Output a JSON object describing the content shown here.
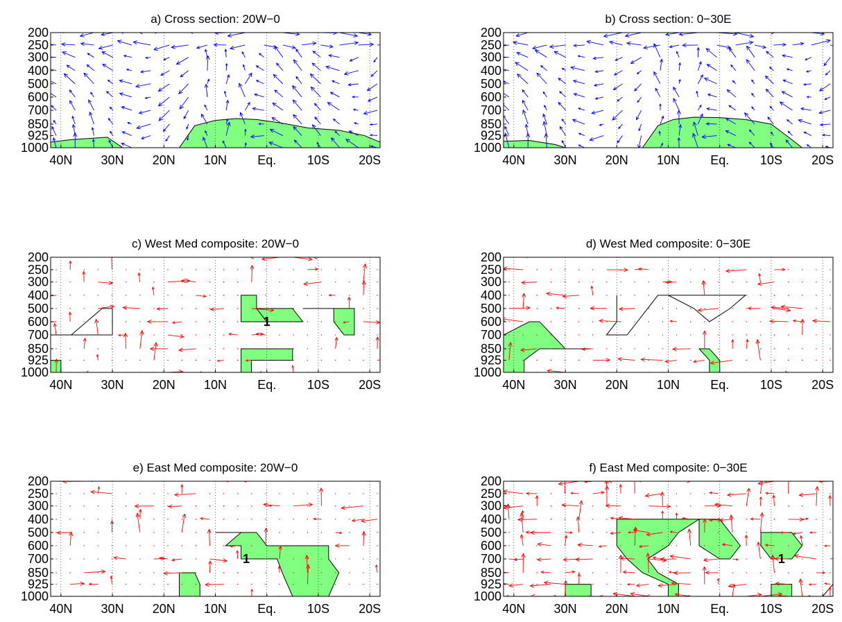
{
  "figure": {
    "background": "#ffffff"
  },
  "colors": {
    "obs_vector": "#0000ff",
    "composite_vector": "#ff0000",
    "shading_fill": "#80ff80",
    "outline": "#000000",
    "grid": "#000000"
  },
  "chart_data": [
    {
      "id": "a",
      "type": "vector-cross-section",
      "title": "a) Cross section: 20W−0",
      "vector_style": "obs",
      "x_ticks": [
        "40N",
        "30N",
        "20N",
        "10N",
        "Eq.",
        "10S",
        "20S"
      ],
      "x_tick_values": [
        40,
        30,
        20,
        10,
        0,
        -10,
        -20
      ],
      "xlim": [
        42,
        -22
      ],
      "y_ticks": [
        "200",
        "250",
        "300",
        "400",
        "500",
        "600",
        "700",
        "850",
        "925",
        "1000"
      ],
      "shaded_regions": [
        [
          [
            42,
            1000
          ],
          [
            42,
            965
          ],
          [
            38,
            950
          ],
          [
            31,
            935
          ],
          [
            28,
            1000
          ]
        ],
        [
          [
            17,
            1000
          ],
          [
            14,
            860
          ],
          [
            10,
            810
          ],
          [
            6,
            790
          ],
          [
            2,
            800
          ],
          [
            -3,
            840
          ],
          [
            -8,
            875
          ],
          [
            -14,
            890
          ],
          [
            -19,
            925
          ],
          [
            -22,
            965
          ],
          [
            -22,
            1000
          ]
        ]
      ],
      "outlines": [],
      "numeric_labels": []
    },
    {
      "id": "b",
      "type": "vector-cross-section",
      "title": "b) Cross section: 0−30E",
      "vector_style": "obs",
      "x_ticks": [
        "40N",
        "30N",
        "20N",
        "10N",
        "Eq.",
        "10S",
        "20S"
      ],
      "x_tick_values": [
        40,
        30,
        20,
        10,
        0,
        -10,
        -20
      ],
      "xlim": [
        42,
        -22
      ],
      "y_ticks": [
        "200",
        "250",
        "300",
        "400",
        "500",
        "600",
        "700",
        "850",
        "925",
        "1000"
      ],
      "shaded_regions": [
        [
          [
            42,
            1000
          ],
          [
            42,
            960
          ],
          [
            37,
            955
          ],
          [
            32,
            980
          ],
          [
            30,
            1000
          ]
        ],
        [
          [
            15,
            1000
          ],
          [
            12,
            860
          ],
          [
            9,
            800
          ],
          [
            5,
            775
          ],
          [
            0,
            780
          ],
          [
            -5,
            800
          ],
          [
            -10,
            850
          ],
          [
            -14,
            950
          ],
          [
            -16,
            1000
          ]
        ]
      ],
      "outlines": [],
      "numeric_labels": []
    },
    {
      "id": "c",
      "type": "vector-cross-section",
      "title": "c) West Med composite: 20W−0",
      "vector_style": "composite",
      "x_ticks": [
        "40N",
        "30N",
        "20N",
        "10N",
        "Eq.",
        "10S",
        "20S"
      ],
      "x_tick_values": [
        40,
        30,
        20,
        10,
        0,
        -10,
        -20
      ],
      "xlim": [
        42,
        -22
      ],
      "y_ticks": [
        "200",
        "250",
        "300",
        "400",
        "500",
        "600",
        "700",
        "850",
        "925",
        "1000"
      ],
      "shaded_regions": [
        [
          [
            5,
            400
          ],
          [
            2,
            400
          ],
          [
            2,
            500
          ],
          [
            0,
            600
          ],
          [
            5,
            600
          ],
          [
            5,
            400
          ]
        ],
        [
          [
            2,
            500
          ],
          [
            -5,
            500
          ],
          [
            -7,
            600
          ],
          [
            0,
            600
          ],
          [
            2,
            500
          ]
        ],
        [
          [
            -13,
            500
          ],
          [
            -17,
            500
          ],
          [
            -17,
            700
          ],
          [
            -15,
            700
          ],
          [
            -13,
            600
          ],
          [
            -13,
            500
          ]
        ],
        [
          [
            3,
            925
          ],
          [
            3,
            1000
          ],
          [
            5,
            1000
          ],
          [
            5,
            850
          ],
          [
            -5,
            850
          ],
          [
            -5,
            925
          ],
          [
            3,
            925
          ]
        ],
        [
          [
            42,
            925
          ],
          [
            42,
            1000
          ],
          [
            40,
            1000
          ],
          [
            40,
            925
          ]
        ]
      ],
      "outlines": [
        [
          [
            42,
            700
          ],
          [
            30,
            700
          ],
          [
            30,
            500
          ],
          [
            32,
            500
          ],
          [
            38,
            700
          ]
        ],
        [
          [
            -7,
            500
          ],
          [
            -13,
            500
          ]
        ]
      ],
      "numeric_labels": [
        {
          "x": 0,
          "y": 600,
          "text": "1"
        }
      ]
    },
    {
      "id": "d",
      "type": "vector-cross-section",
      "title": "d) West Med composite: 0−30E",
      "vector_style": "composite",
      "x_ticks": [
        "40N",
        "30N",
        "20N",
        "10N",
        "Eq.",
        "10S",
        "20S"
      ],
      "x_tick_values": [
        40,
        30,
        20,
        10,
        0,
        -10,
        -20
      ],
      "xlim": [
        42,
        -22
      ],
      "y_ticks": [
        "200",
        "250",
        "300",
        "400",
        "500",
        "600",
        "700",
        "850",
        "925",
        "1000"
      ],
      "shaded_regions": [
        [
          [
            42,
            700
          ],
          [
            37,
            600
          ],
          [
            35,
            600
          ],
          [
            30,
            850
          ],
          [
            35,
            850
          ],
          [
            38,
            925
          ],
          [
            38,
            1000
          ],
          [
            42,
            1000
          ]
        ],
        [
          [
            0,
            925
          ],
          [
            0,
            1000
          ],
          [
            2,
            1000
          ],
          [
            2,
            925
          ],
          [
            4,
            850
          ],
          [
            2,
            850
          ],
          [
            0,
            925
          ]
        ]
      ],
      "outlines": [
        [
          [
            20,
            400
          ],
          [
            20,
            600
          ],
          [
            22,
            700
          ],
          [
            18,
            700
          ],
          [
            12,
            400
          ],
          [
            10,
            400
          ],
          [
            5,
            500
          ],
          [
            2,
            600
          ],
          [
            -2,
            500
          ],
          [
            -5,
            400
          ],
          [
            12,
            400
          ]
        ],
        [
          [
            30,
            850
          ],
          [
            25,
            850
          ]
        ]
      ],
      "numeric_labels": []
    },
    {
      "id": "e",
      "type": "vector-cross-section",
      "title": "e) East Med composite: 20W−0",
      "vector_style": "composite",
      "x_ticks": [
        "40N",
        "30N",
        "20N",
        "10N",
        "Eq.",
        "10S",
        "20S"
      ],
      "x_tick_values": [
        40,
        30,
        20,
        10,
        0,
        -10,
        -20
      ],
      "xlim": [
        42,
        -22
      ],
      "y_ticks": [
        "200",
        "250",
        "300",
        "400",
        "500",
        "600",
        "700",
        "850",
        "925",
        "1000"
      ],
      "shaded_regions": [
        [
          [
            5,
            500
          ],
          [
            2,
            500
          ],
          [
            0,
            600
          ],
          [
            -12,
            600
          ],
          [
            -12,
            700
          ],
          [
            -14,
            850
          ],
          [
            -12,
            1000
          ],
          [
            -5,
            1000
          ],
          [
            -3,
            850
          ],
          [
            -2,
            700
          ],
          [
            5,
            700
          ],
          [
            5,
            600
          ],
          [
            8,
            600
          ],
          [
            5,
            500
          ]
        ],
        [
          [
            17,
            850
          ],
          [
            17,
            1000
          ],
          [
            13,
            1000
          ],
          [
            13,
            925
          ],
          [
            14,
            850
          ]
        ]
      ],
      "outlines": [
        [
          [
            10,
            500
          ],
          [
            5,
            500
          ]
        ]
      ],
      "numeric_labels": [
        {
          "x": 4,
          "y": 700,
          "text": "1"
        }
      ]
    },
    {
      "id": "f",
      "type": "vector-cross-section",
      "title": "f) East Med composite: 0−30E",
      "vector_style": "composite",
      "x_ticks": [
        "40N",
        "30N",
        "20N",
        "10N",
        "Eq.",
        "10S",
        "20S"
      ],
      "x_tick_values": [
        40,
        30,
        20,
        10,
        0,
        -10,
        -20
      ],
      "xlim": [
        42,
        -22
      ],
      "y_ticks": [
        "200",
        "250",
        "300",
        "400",
        "500",
        "600",
        "700",
        "850",
        "925",
        "1000"
      ],
      "shaded_regions": [
        [
          [
            20,
            400
          ],
          [
            20,
            600
          ],
          [
            18,
            700
          ],
          [
            15,
            850
          ],
          [
            10,
            925
          ],
          [
            10,
            1000
          ],
          [
            8,
            1000
          ],
          [
            8,
            925
          ],
          [
            12,
            850
          ],
          [
            14,
            700
          ],
          [
            10,
            600
          ],
          [
            8,
            500
          ],
          [
            4,
            400
          ],
          [
            20,
            400
          ]
        ],
        [
          [
            4,
            400
          ],
          [
            0,
            400
          ],
          [
            -2,
            500
          ],
          [
            -4,
            600
          ],
          [
            -2,
            700
          ],
          [
            0,
            700
          ],
          [
            4,
            600
          ],
          [
            4,
            400
          ]
        ],
        [
          [
            -8,
            500
          ],
          [
            -14,
            500
          ],
          [
            -16,
            600
          ],
          [
            -14,
            700
          ],
          [
            -10,
            700
          ],
          [
            -8,
            600
          ],
          [
            -8,
            500
          ]
        ],
        [
          [
            30,
            925
          ],
          [
            30,
            1000
          ],
          [
            25,
            1000
          ],
          [
            25,
            925
          ]
        ],
        [
          [
            -10,
            925
          ],
          [
            -14,
            925
          ],
          [
            -14,
            1000
          ],
          [
            -10,
            1000
          ]
        ]
      ],
      "outlines": [
        [
          [
            -20,
            1000
          ],
          [
            -22,
            925
          ]
        ]
      ],
      "numeric_labels": [
        {
          "x": -12,
          "y": 700,
          "text": "1"
        }
      ]
    }
  ]
}
